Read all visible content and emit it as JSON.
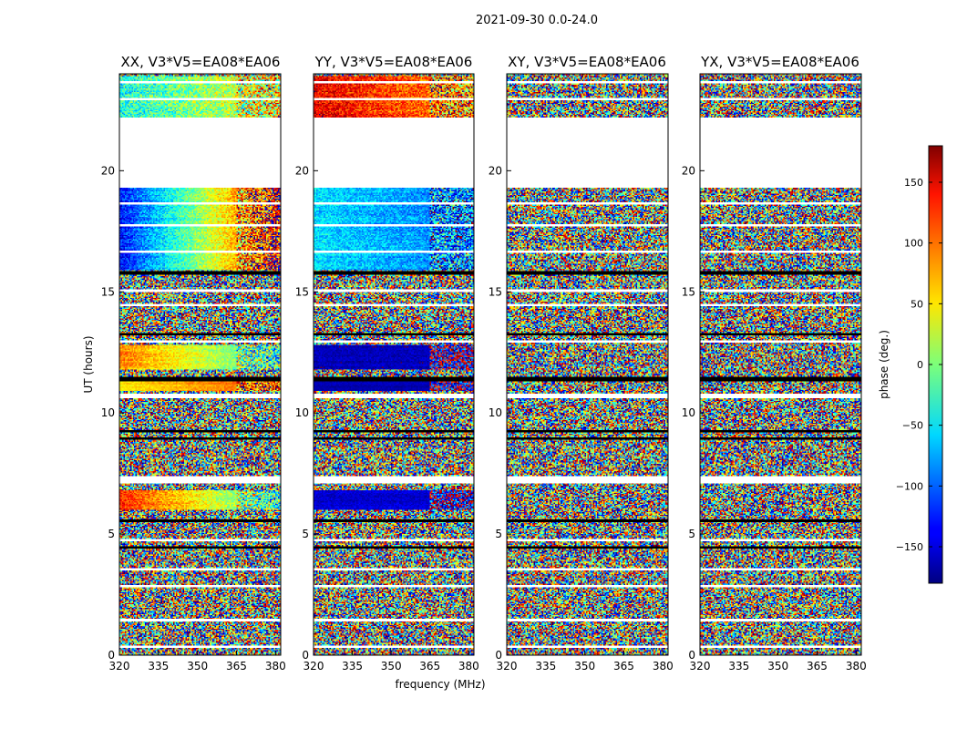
{
  "chart_data": {
    "type": "heatmap",
    "suptitle": "2021-09-30 0.0-24.0",
    "xlabel": "frequency (MHz)",
    "ylabel": "UT (hours)",
    "xlim": [
      320,
      382
    ],
    "ylim": [
      0,
      24
    ],
    "xticks": [
      320,
      335,
      350,
      365,
      380
    ],
    "yticks": [
      0,
      5,
      10,
      15,
      20
    ],
    "colorbar": {
      "label": "phase (deg.)",
      "range": [
        -180,
        180
      ],
      "ticks": [
        150,
        100,
        50,
        0,
        -50,
        -100,
        -150
      ],
      "tick_labels": [
        "150",
        "100",
        "50",
        "0",
        "−50",
        "−100",
        "−150"
      ],
      "colormap": "jet"
    },
    "panels": [
      {
        "title": "XX, V3*V5=EA08*EA06",
        "noise_level": 0.5,
        "coherent": [
          {
            "t0": 15.9,
            "t1": 19.3,
            "base": -130,
            "slope": 4.5,
            "noise": 35
          },
          {
            "t0": 10.9,
            "t1": 11.3,
            "base": 50,
            "slope": 1.0,
            "noise": 15
          },
          {
            "t0": 11.8,
            "t1": 12.8,
            "base": 90,
            "slope": -2.0,
            "noise": 25
          },
          {
            "t0": 6.0,
            "t1": 6.8,
            "base": 120,
            "slope": -2.5,
            "noise": 30
          },
          {
            "t0": 22.2,
            "t1": 23.9,
            "base": -40,
            "slope": 1.5,
            "noise": 50
          }
        ]
      },
      {
        "title": "YY, V3*V5=EA08*EA06",
        "noise_level": 0.5,
        "coherent": [
          {
            "t0": 15.9,
            "t1": 19.3,
            "base": -55,
            "slope": -0.6,
            "noise": 30
          },
          {
            "t0": 10.9,
            "t1": 11.3,
            "base": -165,
            "slope": 0.0,
            "noise": 8
          },
          {
            "t0": 11.8,
            "t1": 12.8,
            "base": -160,
            "slope": 0.0,
            "noise": 15
          },
          {
            "t0": 6.0,
            "t1": 6.8,
            "base": -150,
            "slope": 0.0,
            "noise": 15
          },
          {
            "t0": 22.2,
            "t1": 23.9,
            "base": 140,
            "slope": -1.0,
            "noise": 40
          }
        ]
      },
      {
        "title": "XY, V3*V5=EA08*EA06",
        "noise_level": 1.0,
        "coherent": []
      },
      {
        "title": "YX, V3*V5=EA08*EA06",
        "noise_level": 1.0,
        "coherent": []
      }
    ],
    "gaps": [
      {
        "t0": 19.3,
        "t1": 22.2,
        "kind": "white"
      },
      {
        "t0": 16.6,
        "t1": 16.7,
        "kind": "white"
      },
      {
        "t0": 17.7,
        "t1": 17.8,
        "kind": "white"
      },
      {
        "t0": 18.6,
        "t1": 18.7,
        "kind": "white"
      },
      {
        "t0": 15.7,
        "t1": 15.85,
        "kind": "black"
      },
      {
        "t0": 15.0,
        "t1": 15.1,
        "kind": "white"
      },
      {
        "t0": 14.4,
        "t1": 14.5,
        "kind": "white"
      },
      {
        "t0": 13.2,
        "t1": 13.3,
        "kind": "black"
      },
      {
        "t0": 12.9,
        "t1": 13.0,
        "kind": "white"
      },
      {
        "t0": 11.3,
        "t1": 11.5,
        "kind": "black"
      },
      {
        "t0": 10.6,
        "t1": 10.8,
        "kind": "white"
      },
      {
        "t0": 9.2,
        "t1": 9.3,
        "kind": "black"
      },
      {
        "t0": 8.9,
        "t1": 9.0,
        "kind": "black"
      },
      {
        "t0": 7.1,
        "t1": 7.4,
        "kind": "white"
      },
      {
        "t0": 5.5,
        "t1": 5.6,
        "kind": "black"
      },
      {
        "t0": 4.7,
        "t1": 4.8,
        "kind": "white"
      },
      {
        "t0": 4.4,
        "t1": 4.5,
        "kind": "black"
      },
      {
        "t0": 3.5,
        "t1": 3.6,
        "kind": "white"
      },
      {
        "t0": 2.8,
        "t1": 2.9,
        "kind": "white"
      },
      {
        "t0": 1.4,
        "t1": 1.5,
        "kind": "white"
      },
      {
        "t0": 0.3,
        "t1": 0.4,
        "kind": "white"
      },
      {
        "t0": 23.6,
        "t1": 23.7,
        "kind": "white"
      },
      {
        "t0": 22.9,
        "t1": 23.0,
        "kind": "white"
      }
    ]
  }
}
